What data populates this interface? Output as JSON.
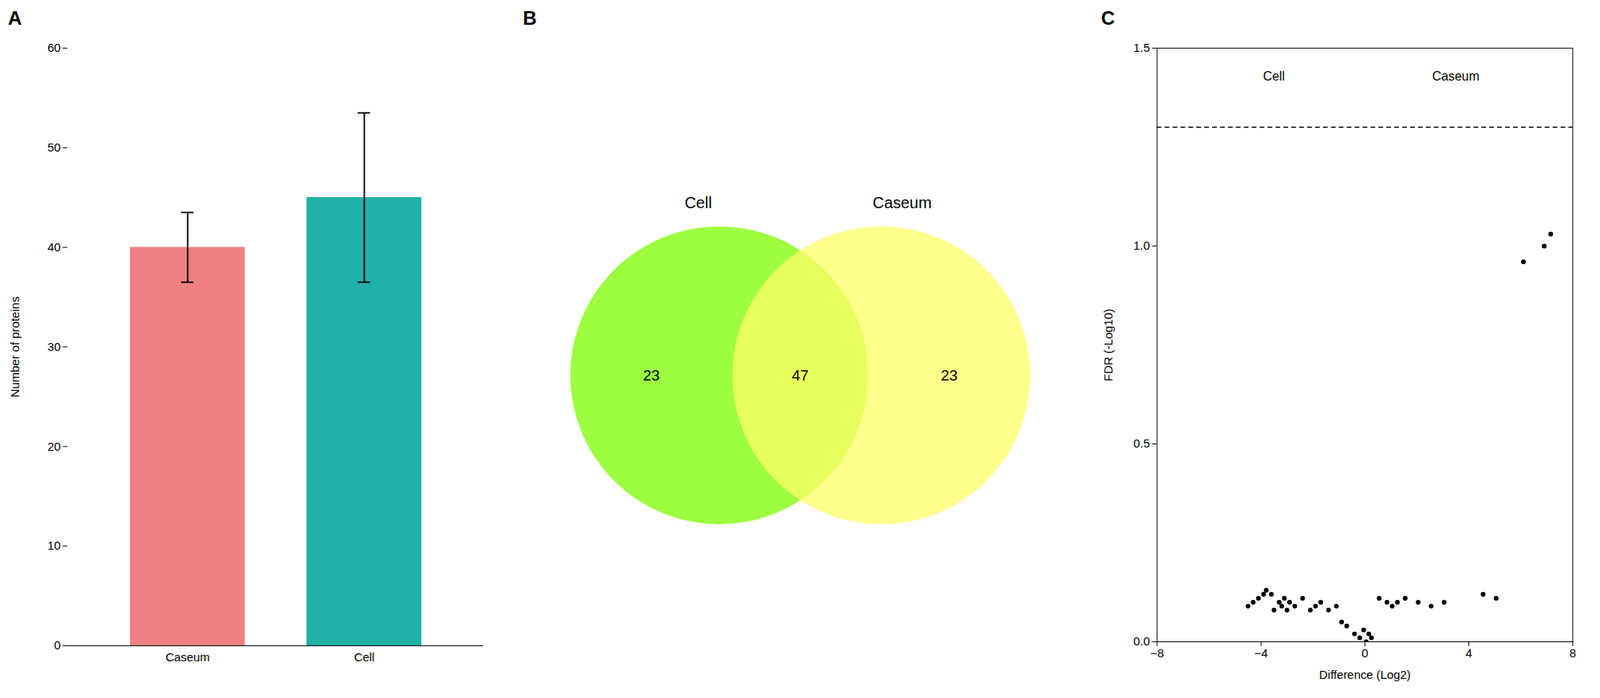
{
  "chart_data": [
    {
      "type": "bar",
      "title": "A",
      "categories": [
        "Caseum",
        "Cell"
      ],
      "values": [
        40,
        45
      ],
      "errors": [
        3.5,
        8.5
      ],
      "colors": [
        "#F08080",
        "#20B2AA"
      ],
      "ylabel": "Number of proteins",
      "ylim": [
        0,
        60
      ],
      "yticks": [
        0,
        10,
        20,
        30,
        40,
        50,
        60
      ]
    },
    {
      "type": "venn",
      "title": "B",
      "categories": [
        "Cell",
        "Caseum"
      ],
      "colors": [
        "#7CFC00",
        "#FFFF66"
      ],
      "values": [
        23,
        23
      ],
      "intersection": 47
    },
    {
      "type": "scatter",
      "title": "C",
      "color": "#000000",
      "x": [
        -4.5,
        -4.3,
        -4.1,
        -3.9,
        -3.8,
        -3.6,
        -3.5,
        -3.3,
        -3.2,
        -3.1,
        -3.0,
        -2.9,
        -2.7,
        -2.4,
        -2.1,
        -1.9,
        -1.7,
        -1.4,
        -1.1,
        -0.9,
        -0.7,
        -0.4,
        -0.2,
        -0.05,
        0.05,
        0.15,
        0.25,
        0.55,
        0.85,
        1.05,
        1.25,
        1.55,
        2.05,
        2.55,
        3.05,
        4.55,
        5.05,
        6.1,
        6.9,
        7.15
      ],
      "values": [
        0.09,
        0.1,
        0.11,
        0.12,
        0.13,
        0.12,
        0.08,
        0.1,
        0.09,
        0.11,
        0.08,
        0.1,
        0.09,
        0.11,
        0.08,
        0.09,
        0.1,
        0.08,
        0.09,
        0.05,
        0.04,
        0.02,
        0.01,
        0.03,
        0.0,
        0.02,
        0.01,
        0.11,
        0.1,
        0.09,
        0.1,
        0.11,
        0.1,
        0.09,
        0.1,
        0.12,
        0.11,
        0.96,
        1.0,
        1.03
      ],
      "xlabel": "Difference (Log2)",
      "ylabel": "FDR (-Log10)",
      "xlim": [
        -8,
        8
      ],
      "ylim": [
        0.0,
        1.5
      ],
      "xticks": [
        -8,
        -4,
        0,
        4,
        8
      ],
      "yticks": [
        {
          "value": 0,
          "label": "0.0"
        },
        0.5,
        {
          "value": 1,
          "label": "1.0"
        },
        1.5
      ],
      "reference_lines": [
        {
          "y": 1.3,
          "color": "#000000",
          "line_style": "dashed"
        }
      ],
      "annotations": [
        {
          "text": "Cell",
          "x": -3.5,
          "y": 1.44
        },
        {
          "text": "Caseum",
          "x": 3.5,
          "y": 1.44
        }
      ]
    }
  ]
}
